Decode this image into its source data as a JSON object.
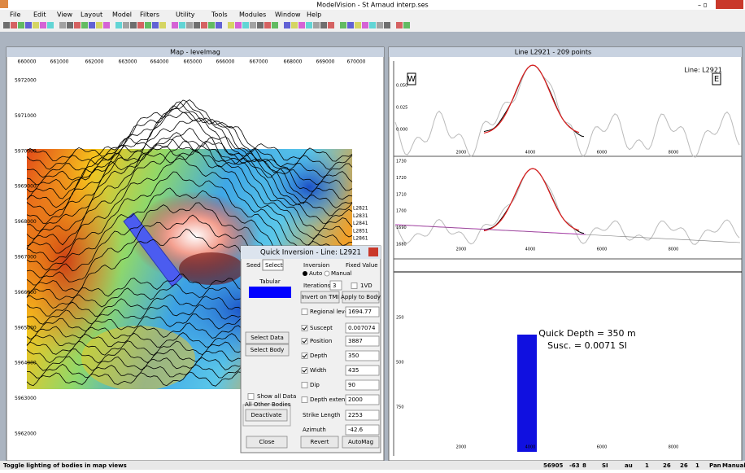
{
  "app": {
    "title": "ModelVision - St Arnaud interp.ses",
    "menu": [
      "File",
      "Edit",
      "View",
      "Layout",
      "Model",
      "Filters",
      "Utility",
      "Tools",
      "Modules",
      "Window",
      "Help"
    ]
  },
  "map": {
    "title": "Map - levelmag",
    "x_ticks": [
      660000,
      661000,
      662000,
      663000,
      664000,
      665000,
      666000,
      667000,
      668000,
      669000,
      670000
    ],
    "y_ticks": [
      5972000,
      5971000,
      5970000,
      5969000,
      5968000,
      5967000,
      5966000,
      5965000,
      5964000,
      5963000,
      5962000
    ],
    "line_labels": [
      "L2821",
      "L2831",
      "L2841",
      "L2851",
      "L2861"
    ]
  },
  "profile": {
    "title": "Line L2921 - 209 points",
    "west": "W",
    "east": "E",
    "line": "Line: L2921",
    "top_y_ticks": [
      "0.050",
      "0.025",
      "0.000"
    ],
    "mid_y_ticks": [
      1730,
      1720,
      1710,
      1700,
      1690,
      1680
    ],
    "depth_y_ticks": [
      250,
      500,
      750
    ],
    "x_ticks": [
      2000,
      4000,
      6000,
      8000
    ],
    "annotation": [
      "Quick Depth = 350 m",
      "Susc. = 0.0071 SI"
    ]
  },
  "dialog": {
    "title": "Quick Inversion - Line: L2921",
    "tabs": [
      "Seed",
      "Select"
    ],
    "body_type": "Tabular",
    "inversion": "Inversion",
    "fixed_value": "Fixed Value",
    "auto": "Auto",
    "manual": "Manual",
    "iterations_label": "Iterations:",
    "iterations": "3",
    "one_vd": "1VD",
    "invert_tmi": "Invert on TMI",
    "apply": "Apply to Body",
    "params": [
      {
        "label": "Regional level",
        "value": "1694.77",
        "checked": false
      },
      {
        "label": "Suscept",
        "value": "0.007074",
        "checked": true
      },
      {
        "label": "Position",
        "value": "3887",
        "checked": true
      },
      {
        "label": "Depth",
        "value": "350",
        "checked": true
      },
      {
        "label": "Width",
        "value": "435",
        "checked": true
      },
      {
        "label": "Dip",
        "value": "90",
        "checked": false
      },
      {
        "label": "Depth extent",
        "value": "2000",
        "checked": false
      },
      {
        "label": "Strike Length",
        "value": "2253"
      },
      {
        "label": "Azimuth",
        "value": "-42.6"
      }
    ],
    "select_data": "Select Data",
    "select_body": "Select Body",
    "show_all": "Show all Data",
    "other_bodies": "All Other Bodies",
    "deactivate": "Deactivate",
    "close": "Close",
    "revert": "Revert",
    "automag": "AutoMag"
  },
  "status": {
    "hint": "Toggle lighting of bodies in map views",
    "fields": [
      "56905",
      "-63",
      "8",
      "SI",
      "au",
      "1",
      "26",
      "26",
      "1",
      "Pan",
      "Manual"
    ]
  }
}
